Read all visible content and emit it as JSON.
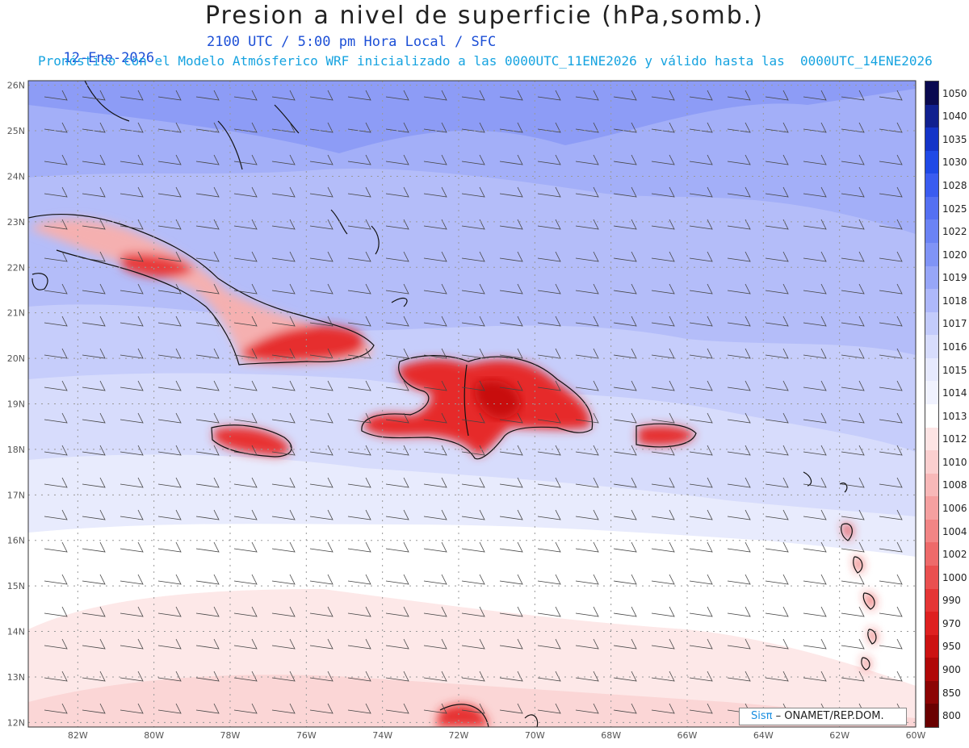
{
  "header": {
    "title": "Presion a nivel de superficie (hPa,somb.)",
    "date": "12-Ene-2026",
    "time": "2100 UTC / 5:00 pm Hora Local / SFC",
    "forecast": "Pronóstico con el Modelo Atmósferico WRF inicializado a las 0000UTC_11ENE2026 y válido hasta las  0000UTC_14ENE2026"
  },
  "map": {
    "lon_range": [
      -83.3,
      -60
    ],
    "lat_range": [
      11.9,
      26.1
    ],
    "lat_labels": [
      "26N",
      "25N",
      "24N",
      "23N",
      "22N",
      "21N",
      "20N",
      "19N",
      "18N",
      "17N",
      "16N",
      "15N",
      "14N",
      "13N",
      "12N"
    ],
    "lon_labels": [
      "82W",
      "80W",
      "78W",
      "76W",
      "74W",
      "72W",
      "70W",
      "68W",
      "66W",
      "64W",
      "62W",
      "60W"
    ],
    "grid": true
  },
  "colorbar": {
    "levels": [
      "1050",
      "1040",
      "1035",
      "1030",
      "1028",
      "1025",
      "1022",
      "1020",
      "1019",
      "1018",
      "1017",
      "1016",
      "1015",
      "1014",
      "1013",
      "1012",
      "1010",
      "1008",
      "1006",
      "1004",
      "1002",
      "1000",
      "990",
      "970",
      "950",
      "900",
      "850",
      "800"
    ],
    "colors": [
      "#0a0a50",
      "#10208f",
      "#1434c8",
      "#1f49e6",
      "#3a5cf0",
      "#5470f2",
      "#6b83f4",
      "#8094f6",
      "#97a6f8",
      "#aeb8fa",
      "#c3cbfb",
      "#d7dcfc",
      "#e6e9fd",
      "#f0f2fe",
      "#ffffff",
      "#fde4e4",
      "#fbcfcf",
      "#f8b8b8",
      "#f5a0a0",
      "#f28585",
      "#ee6a6a",
      "#ea4f4f",
      "#e53535",
      "#de2020",
      "#cc1212",
      "#b00808",
      "#8c0404",
      "#6a0000"
    ]
  },
  "credit": {
    "brand": "Sisπ",
    "text": " – ONAMET/REP.DOM."
  }
}
